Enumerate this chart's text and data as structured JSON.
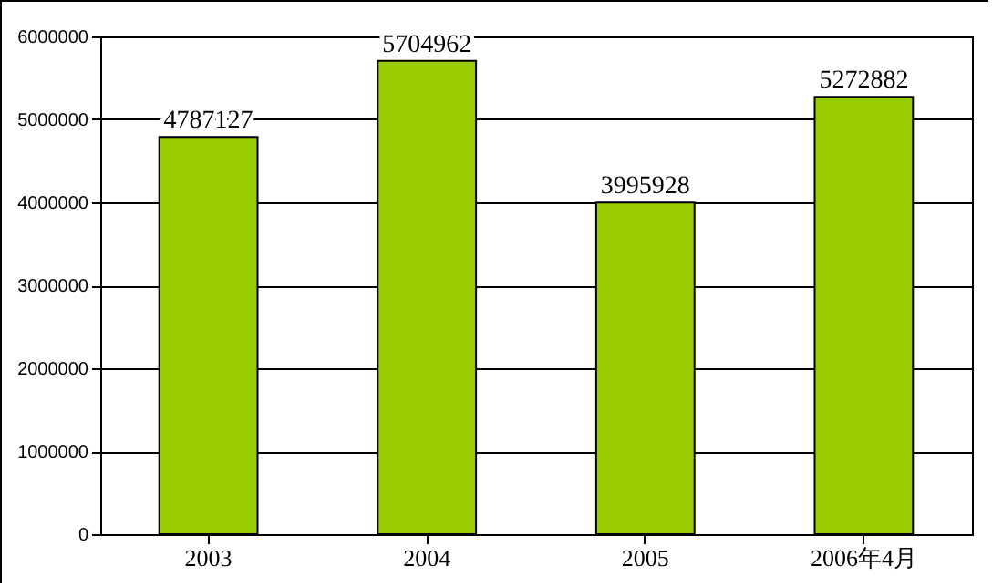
{
  "chart_data": {
    "type": "bar",
    "categories": [
      "2003",
      "2004",
      "2005",
      "2006年4月"
    ],
    "values": [
      4787127,
      5704962,
      3995928,
      5272882
    ],
    "color": "#99cc00",
    "ylim": [
      0,
      6000000
    ],
    "yticks": [
      0,
      1000000,
      2000000,
      3000000,
      4000000,
      5000000,
      6000000
    ],
    "grid": "y",
    "data_labels": true
  }
}
